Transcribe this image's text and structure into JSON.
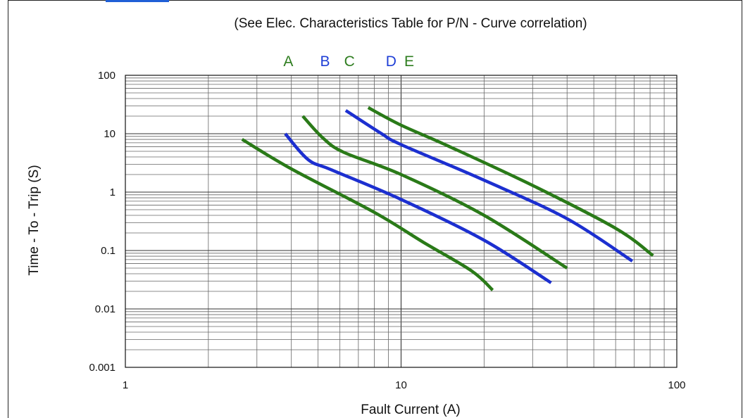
{
  "chart_data": {
    "type": "line",
    "title": "(See Elec. Characteristics Table for P/N - Curve correlation)",
    "xlabel": "Fault Current (A)",
    "ylabel": "Time - To - Trip (S)",
    "x_scale": "log",
    "y_scale": "log",
    "xlim": [
      1,
      100
    ],
    "ylim": [
      0.001,
      100
    ],
    "x_ticks": [
      "1",
      "10",
      "100"
    ],
    "y_ticks": [
      "0.001",
      "0.01",
      "0.1",
      "1",
      "10",
      "100"
    ],
    "grid": true,
    "curve_letters": [
      {
        "text": "A",
        "x": 3.9,
        "color": "#2e7d1f"
      },
      {
        "text": "B",
        "x": 5.3,
        "color": "#1f3fd6"
      },
      {
        "text": "C",
        "x": 6.5,
        "color": "#2e7d1f"
      },
      {
        "text": "D",
        "x": 9.2,
        "color": "#1f3fd6"
      },
      {
        "text": "E",
        "x": 10.7,
        "color": "#2e7d1f"
      }
    ],
    "series": [
      {
        "color": "#2a7a18",
        "points": [
          [
            2.65,
            8.0
          ],
          [
            4,
            2.5
          ],
          [
            8,
            0.45
          ],
          [
            12,
            0.14
          ],
          [
            18,
            0.045
          ],
          [
            21.5,
            0.021
          ]
        ]
      },
      {
        "color": "#1c2fd0",
        "points": [
          [
            3.8,
            10.0
          ],
          [
            4.6,
            3.6
          ],
          [
            5.6,
            2.4
          ],
          [
            10,
            0.75
          ],
          [
            20,
            0.15
          ],
          [
            35,
            0.028
          ]
        ]
      },
      {
        "color": "#2a7a18",
        "points": [
          [
            4.4,
            20.0
          ],
          [
            5.2,
            8.5
          ],
          [
            6.2,
            4.8
          ],
          [
            10,
            2.0
          ],
          [
            20,
            0.4
          ],
          [
            40,
            0.05
          ]
        ]
      },
      {
        "color": "#1c2fd0",
        "points": [
          [
            6.3,
            25.0
          ],
          [
            8.5,
            10.0
          ],
          [
            10,
            6.5
          ],
          [
            20,
            1.6
          ],
          [
            40,
            0.35
          ],
          [
            69,
            0.066
          ]
        ]
      },
      {
        "color": "#2a7a18",
        "points": [
          [
            7.6,
            28.0
          ],
          [
            10,
            14.0
          ],
          [
            15,
            6.0
          ],
          [
            30,
            1.3
          ],
          [
            60,
            0.24
          ],
          [
            82,
            0.082
          ]
        ]
      }
    ]
  }
}
